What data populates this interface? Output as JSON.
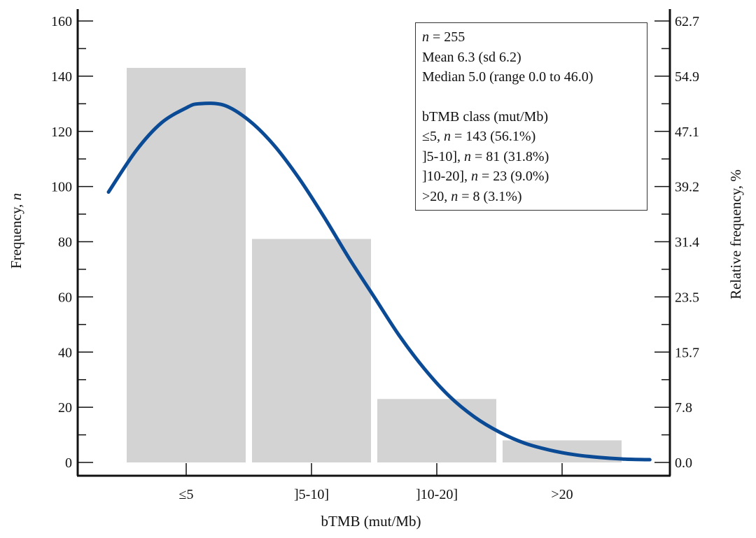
{
  "chart_data": {
    "type": "bar",
    "categories": [
      "≤5",
      "]5-10]",
      "]10-20]",
      ">20"
    ],
    "values": [
      143,
      81,
      23,
      8
    ],
    "xlabel": "bTMB (mut/Mb)",
    "ylabel_text": "Frequency, ",
    "ylabel_italic": "n",
    "ylabel_right": "Relative frequency, %",
    "ylim": [
      0,
      160
    ],
    "y_ticks": [
      "0",
      "20",
      "40",
      "60",
      "80",
      "100",
      "120",
      "140",
      "160"
    ],
    "y_ticks_right": [
      "0.0",
      "7.8",
      "15.7",
      "23.5",
      "31.4",
      "39.2",
      "47.1",
      "54.9",
      "62.7"
    ],
    "grid": false,
    "bar_color": "#d3d3d3",
    "curve_color": "#0b4a94",
    "fitted_curve": {
      "x": [
        -0.62,
        -0.4,
        -0.2,
        0.0,
        0.1,
        0.3,
        0.5,
        0.7,
        0.9,
        1.1,
        1.3,
        1.5,
        1.7,
        1.9,
        2.1,
        2.3,
        2.5,
        2.7,
        2.9,
        3.1,
        3.3,
        3.5,
        3.7
      ],
      "y": [
        98,
        113,
        123,
        128.5,
        130,
        129.5,
        124,
        115,
        103,
        89,
        74,
        60,
        46,
        34,
        24,
        16.5,
        11,
        7,
        4.5,
        2.8,
        1.8,
        1.2,
        1
      ]
    }
  },
  "stats": {
    "n_label": "n",
    "n_value": " = 255",
    "mean": "Mean 6.3 (sd 6.2)",
    "median": "Median 5.0 (range 0.0 to 46.0)",
    "class_title": "bTMB class (mut/Mb)",
    "classes": [
      {
        "pre": "≤5, ",
        "n": "n",
        "post": " = 143 (56.1%)"
      },
      {
        "pre": "]5-10], ",
        "n": "n",
        "post": " = 81 (31.8%)"
      },
      {
        "pre": "]10-20], ",
        "n": "n",
        "post": " = 23 (9.0%)"
      },
      {
        "pre": ">20, ",
        "n": "n",
        "post": " = 8 (3.1%)"
      }
    ]
  }
}
